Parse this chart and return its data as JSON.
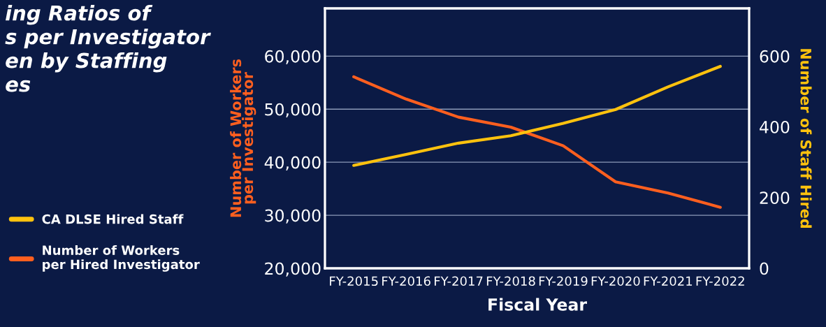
{
  "chart_data": {
    "type": "line",
    "title": "ing Ratios of\ns per Investigator\nen by Staffing\nes",
    "categories": [
      "FY-2015",
      "FY-2016",
      "FY-2017",
      "FY-2018",
      "FY-2019",
      "FY-2020",
      "FY-2021",
      "FY-2022"
    ],
    "series": [
      {
        "name": "CA DLSE Hired Staff",
        "color": "#ffc20e",
        "axis": "y2",
        "values": [
          291,
          322,
          354,
          375,
          410,
          449,
          513,
          571
        ]
      },
      {
        "name": "Number of Workers\nper Hired Investigator",
        "color": "#ff5f1f",
        "values": [
          56100,
          51900,
          48500,
          46600,
          43100,
          36300,
          34200,
          31500
        ]
      }
    ],
    "xlabel": "Fiscal Year",
    "ylabel": "Number of Workers\nper Investigator",
    "y2label": "Number of Staff Hired",
    "ylim": [
      20000,
      69000
    ],
    "yticks": [
      {
        "value": 20000,
        "label": "20,000"
      },
      {
        "value": 30000,
        "label": "30,000"
      },
      {
        "value": 40000,
        "label": "40,000"
      },
      {
        "value": 50000,
        "label": "50,000"
      },
      {
        "value": 60000,
        "label": "60,000"
      }
    ],
    "y2lim": [
      0,
      735
    ],
    "y2ticks": [
      0,
      200,
      400,
      600
    ],
    "grid": "y",
    "legend": "left",
    "marker": "none",
    "line_style": "solid"
  }
}
